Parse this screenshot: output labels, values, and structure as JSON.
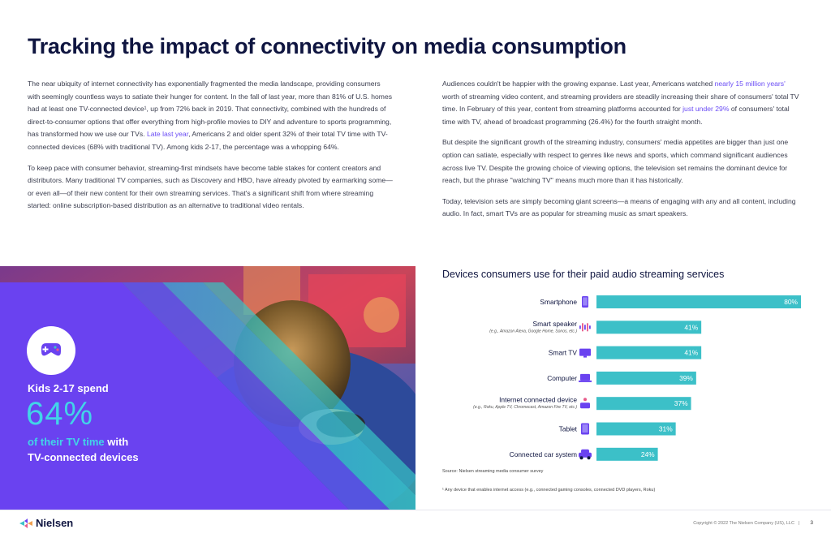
{
  "page": {
    "title": "Tracking the impact of connectivity on media consumption"
  },
  "left_column": {
    "p1": [
      {
        "text": "The near ubiquity of internet connectivity has exponentially fragmented the media landscape, providing consumers with seemingly countless ways to satiate their hunger for content. In the fall of last year, more than 81% of U.S. homes had at least one TV-connected device",
        "link": false
      },
      {
        "text": "¹",
        "link": false
      },
      {
        "text": ", up from 72% back in 2019. That connectivity, combined with the hundreds of direct-to-consumer options that offer everything from high-profile movies to DIY and adventure to sports programming, has transformed how we use our TVs. ",
        "link": false
      },
      {
        "text": "Late last year",
        "link": true
      },
      {
        "text": ", Americans 2 and older spent 32% of their total TV time with TV-connected devices (68% with traditional TV). Among kids 2-17, the percentage was a whopping 64%.",
        "link": false
      }
    ],
    "p2": [
      {
        "text": "To keep pace with consumer behavior, streaming-first mindsets have become table stakes for content creators and distributors. Many traditional TV companies, such as Discovery and HBO, have already pivoted by earmarking some—or even all—of their new content for their own streaming services. That's a significant shift from where streaming started: online subscription-based distribution as an alternative to traditional video rentals.",
        "link": false
      }
    ]
  },
  "right_column": {
    "p1": [
      {
        "text": "Audiences couldn't be happier with the growing expanse. Last year, Americans watched ",
        "link": false
      },
      {
        "text": "nearly 15 million years'",
        "link": true
      },
      {
        "text": " worth of streaming video content, and streaming providers are steadily increasing their share of consumers' total TV time. In February of this year, content from streaming platforms accounted for ",
        "link": false
      },
      {
        "text": "just under 29%",
        "link": true
      },
      {
        "text": " of consumers' total time with TV, ahead of broadcast programming (26.4%) for the fourth straight month.",
        "link": false
      }
    ],
    "p2": [
      {
        "text": "But despite the significant growth of the streaming industry, consumers' media appetites are bigger than just one option can satiate, especially with respect to genres like news and sports, which command significant audiences across live TV. Despite the growing choice of viewing options, the television set remains the dominant device for reach, but the phrase \"watching TV\" means much more than it has historically.",
        "link": false
      }
    ],
    "p3": [
      {
        "text": "Today, television sets are simply becoming giant screens—a means of engaging with any and all content, including audio. In fact, smart TVs are as popular for streaming music as smart speakers.",
        "link": false
      }
    ]
  },
  "hero": {
    "icon": "game-controller-icon",
    "line1": "Kids 2-17 spend",
    "big_value": "64%",
    "line2_highlight": "of their TV time",
    "line2_rest": " with",
    "line3": "TV-connected devices"
  },
  "chart_data": {
    "type": "bar",
    "orientation": "horizontal",
    "title": "Devices consumers use for their paid audio streaming services",
    "categories": [
      "Smartphone",
      "Smart speaker",
      "Smart TV",
      "Computer",
      "Internet connected device",
      "Tablet",
      "Connected car system"
    ],
    "subtitles": [
      "",
      "(e.g., Amazon Alexa, Google Home, Sonos, etc.)",
      "",
      "",
      "(e.g., Roku, Apple TV, Chromecast, Amazon Fire TV, etc.)",
      "",
      ""
    ],
    "icons": [
      "smartphone-icon",
      "smart-speaker-icon",
      "smart-tv-icon",
      "computer-icon",
      "connected-device-icon",
      "tablet-icon",
      "car-icon"
    ],
    "values": [
      80,
      41,
      41,
      39,
      37,
      31,
      24
    ],
    "value_labels": [
      "80%",
      "41%",
      "41%",
      "39%",
      "37%",
      "31%",
      "24%"
    ],
    "xlim": [
      0,
      80
    ],
    "unit": "%",
    "bar_color": "#3cc0c8",
    "icon_color": "#6a42f0"
  },
  "notes": {
    "source": "Source: Nielsen streaming media consumer survey",
    "footnote": "¹ Any device that enables internet access (e.g., connected gaming consoles, connected DVD players, Roku)"
  },
  "footer": {
    "brand": "Nielsen",
    "copyright": "Copyright © 2022 The Nielsen Company (US), LLC",
    "separator": "|",
    "page_number": "3"
  },
  "colors": {
    "accent": "#6a4cf5",
    "teal": "#3cc0c8",
    "navy": "#0f1540"
  }
}
